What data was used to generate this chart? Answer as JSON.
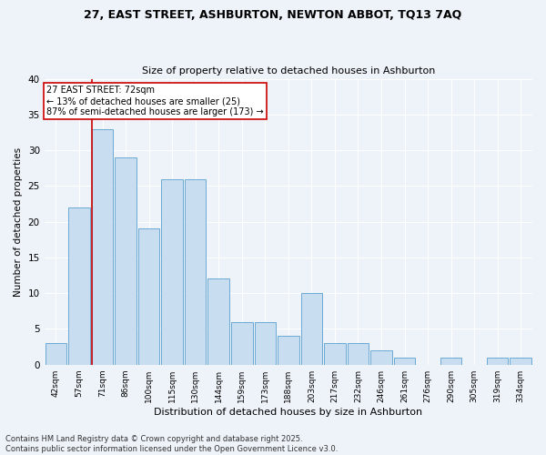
{
  "title_line1": "27, EAST STREET, ASHBURTON, NEWTON ABBOT, TQ13 7AQ",
  "title_line2": "Size of property relative to detached houses in Ashburton",
  "xlabel": "Distribution of detached houses by size in Ashburton",
  "ylabel": "Number of detached properties",
  "categories": [
    "42sqm",
    "57sqm",
    "71sqm",
    "86sqm",
    "100sqm",
    "115sqm",
    "130sqm",
    "144sqm",
    "159sqm",
    "173sqm",
    "188sqm",
    "203sqm",
    "217sqm",
    "232sqm",
    "246sqm",
    "261sqm",
    "276sqm",
    "290sqm",
    "305sqm",
    "319sqm",
    "334sqm"
  ],
  "values": [
    3,
    22,
    33,
    29,
    19,
    26,
    26,
    12,
    6,
    6,
    4,
    10,
    3,
    3,
    2,
    1,
    0,
    1,
    0,
    1,
    1
  ],
  "bar_color": "#c9ddf0",
  "bar_edge_color": "#6aaad4",
  "highlight_index": 2,
  "highlight_line_color": "#cc0000",
  "annotation_text": "27 EAST STREET: 72sqm\n← 13% of detached houses are smaller (25)\n87% of semi-detached houses are larger (173) →",
  "annotation_box_color": "#ffffff",
  "annotation_border_color": "#cc0000",
  "ylim": [
    0,
    40
  ],
  "yticks": [
    0,
    5,
    10,
    15,
    20,
    25,
    30,
    35,
    40
  ],
  "background_color": "#eef2f9",
  "grid_color": "#ffffff",
  "footnote_line1": "Contains HM Land Registry data © Crown copyright and database right 2025.",
  "footnote_line2": "Contains public sector information licensed under the Open Government Licence v3.0."
}
